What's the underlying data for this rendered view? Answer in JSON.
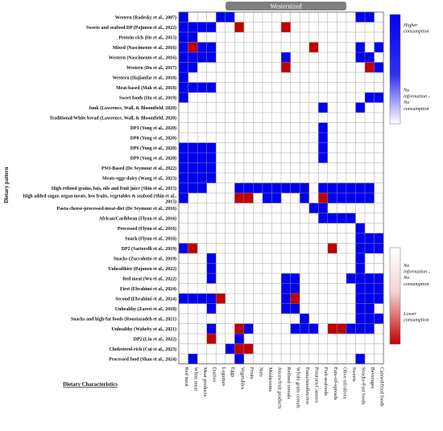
{
  "chart_data": {
    "type": "heatmap",
    "banner": "Westernized",
    "ylabel": "Dietary pattern",
    "xlabel": "Dietary Characteristics",
    "columns": [
      "Red meat",
      "White meat",
      "Meat products",
      "Dairies",
      "Legumes",
      "Eggs",
      "Vegetables",
      "Fruits",
      "Nuts",
      "Mushrooms",
      "Juices/fruit products",
      "Refined cereals",
      "Whole grain cereals",
      "Pasta/noodles/rice",
      "Potatoes/Cassava",
      "Fish-seafoods",
      "Fats-oil-spreads",
      "Olive oil/olives",
      "Sweets",
      "Snacks-Fast foods",
      "Beverages",
      "Canned/fried foods"
    ],
    "rows": [
      "Western  (Radesky et al., 2007)",
      "Sweets and seafood DP (Pajunen et al., 2022)",
      "Protein-rich (He et al., 2015)",
      "Mixed  (Nascimento et al., 2016)",
      "Western  (Nascimento et al., 2016)",
      "Western  (Du et al., 2017)",
      "Western  (Hajianfar et al., 2018)",
      "Meat-based  (Mak et al., 2018)",
      "Sweet foods  (Hu et al., 2019)",
      "Junk (Lawrence, Wall, & Bloomfield, 2020)",
      "Traditional/White bread (Lawrence, Wall, & Bloomfield, 2020)",
      "DP3 (Yong et al., 2020)",
      "DP8 (Yong et al., 2020)",
      "DP6 (Yong et al., 2020)",
      "DP9 (Yong et al., 2020)",
      "PSO-Based (De Seymour et al., 2022)",
      "Meats-eggs-dairy (Wang et al., 2023)",
      "High refined grains, fats, oils and fruit juice (Shin et al., 2015)",
      "High added sugar, organ meats, low fruits, vegetables & seafood (Shin et al., 2015)",
      "Pasta-cheese-processed-meat-diet (De Seymour et al., 2016)",
      "African/Caribbean (Flynn et al., 2016)",
      "Processed  (Flynn et al., 2016)",
      "Snack  (Flynn et al., 2016)",
      "DP2 (Sartorelli et al., 2019)",
      "Snacks (Zuccolotto et al., 2019)",
      "Unhealthier (Pajunen et al., 2022)",
      "Red meat  (Wu et al., 2022)",
      "First (Ebrahimi et al., 2024)",
      "Second (Ebrahimi et al., 2024)",
      "Unhealthy (Zareei et al., 2018)",
      "Snacks and high-fat foods (Roustazadeh et al., 2021)",
      "Unhealthy (Waheby et al., 2021)",
      "DP2 (Liu et al., 2022)",
      "Cholesterol-rich (Cui et al., 2023)",
      "Processed food  (Shan et al., 2024)"
    ],
    "cells": [
      "1000110000000000000110",
      "1111002000020000000000",
      "1100000000000000000000",
      "1211000000000020000101",
      "1111000000010000000110",
      "1100000000020000000021",
      "1000000000000000000000",
      "1111000000000000000000",
      "1000000000000000000011",
      "0000000000000001000100",
      "0000000000000000000000",
      "0000000000000001000000",
      "0000000000000001000000",
      "1111000000000001000000",
      "1111000000000001000000",
      "1111000000000000000000",
      "1111000000000000000000",
      "1110001111111101111110",
      "1000002201100102111110",
      "0000000000000011000000",
      "0000000000000001111000",
      "0000000000000000000100",
      "0000000000000000000111",
      "1200000000000000200111",
      "0001000000000000000100",
      "0001000000000000000100",
      "0001000000011000001111",
      "0000000000011000000111",
      "1111200000012000000111",
      "0001000000011000000110",
      "0000000000000100000111",
      "0001002100001110221110",
      "0002001000000000000000",
      "0000012200000000000000",
      "0100001000000000000100"
    ],
    "cell_codes": {
      "0": "No information - No consumption",
      "1": "Higher consumption",
      "2": "Lower consumption"
    },
    "colors": {
      "higher": "#0000ee",
      "lower": "#c00000",
      "none": "#ffffff",
      "grid": "#9a9a9a",
      "banner": "#7f7f7f"
    },
    "legend": {
      "top": {
        "high": "Higher consumption",
        "mid": "No information - No consumption"
      },
      "bottom": {
        "mid": "No information - No consumption",
        "low": "Lower consumption"
      }
    }
  }
}
